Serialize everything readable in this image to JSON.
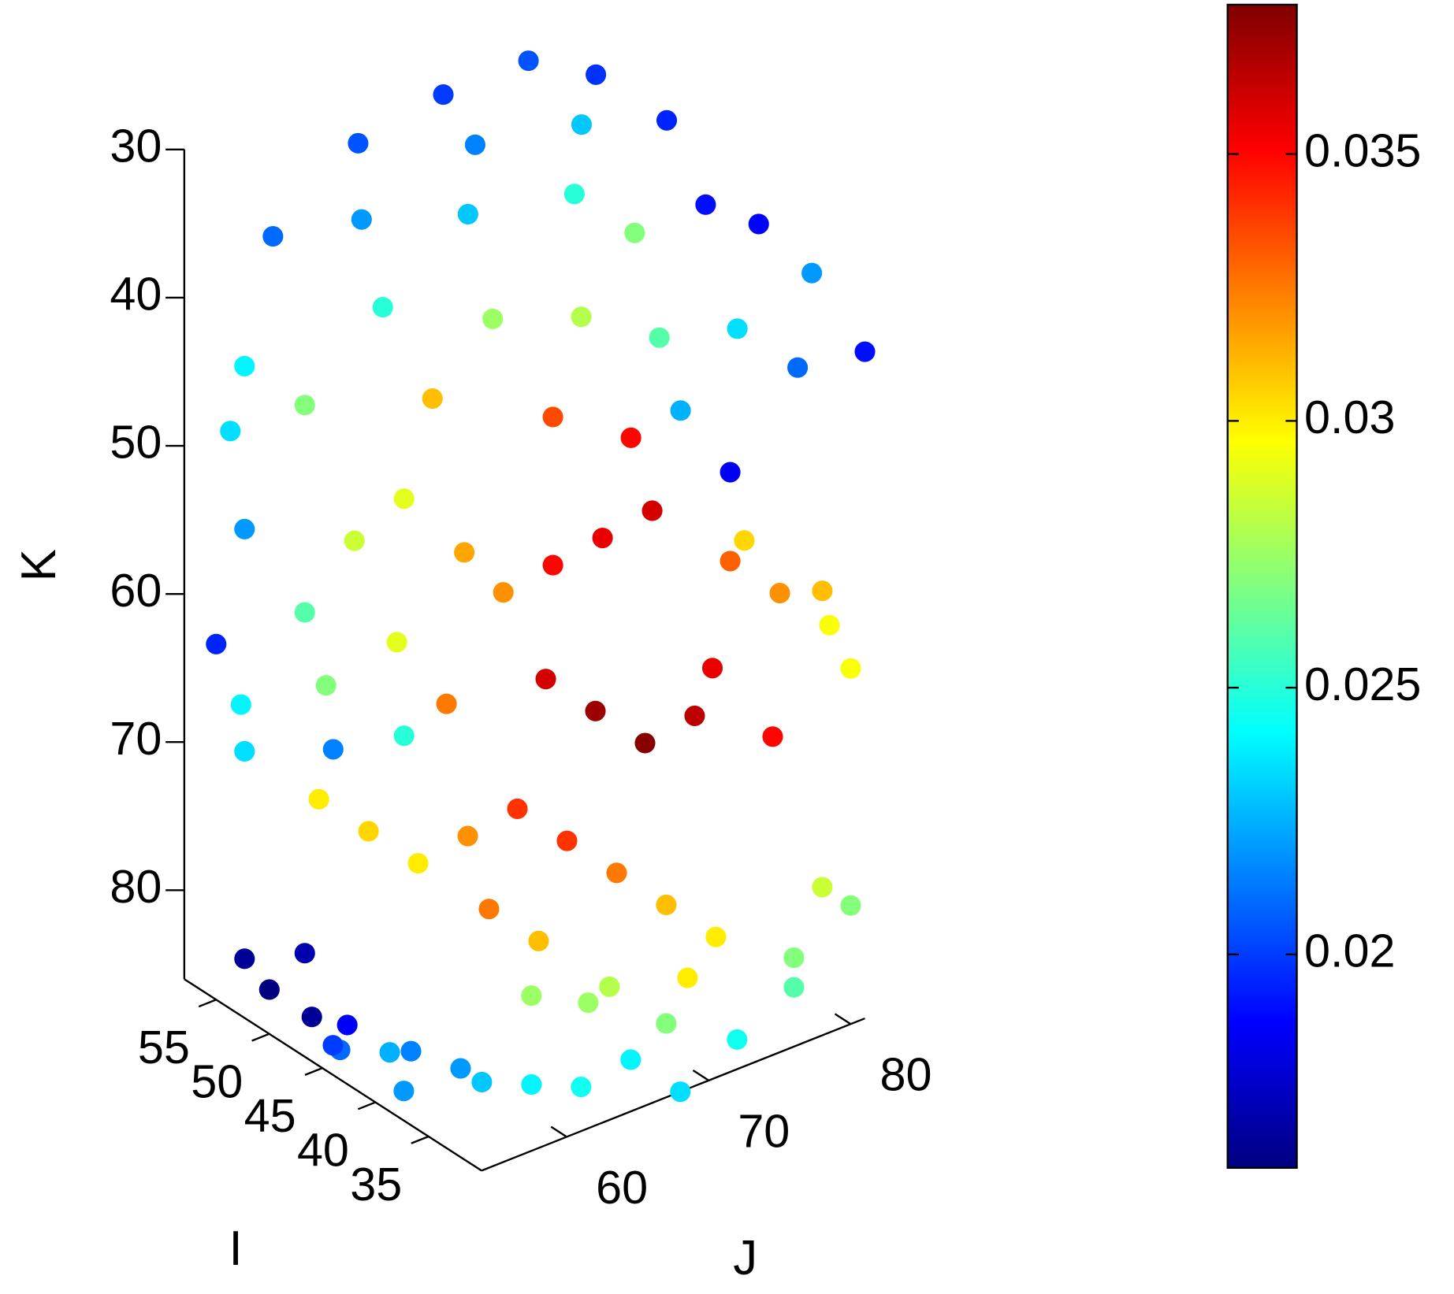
{
  "chart_data": {
    "type": "scatter3d",
    "xlabel": "I",
    "ylabel": "J",
    "zlabel": "K",
    "xlim": [
      58,
      30
    ],
    "xticks": [
      35,
      40,
      45,
      50,
      55
    ],
    "ylim": [
      54,
      81
    ],
    "yticks": [
      60,
      70,
      80
    ],
    "zlim": [
      86,
      30
    ],
    "zticks": [
      30,
      40,
      50,
      60,
      70,
      80
    ],
    "clim": [
      0.016,
      0.0378
    ],
    "cticks": [
      0.02,
      0.025,
      0.03,
      0.035
    ],
    "colormap": "jet",
    "x": [
      55,
      55,
      55,
      54,
      50,
      45,
      40,
      35,
      55,
      52,
      50,
      48,
      45,
      50,
      52,
      45,
      42,
      40,
      38,
      35,
      30,
      50,
      55,
      55,
      52,
      48,
      42,
      40,
      36,
      38,
      55,
      55,
      52,
      50,
      48,
      45,
      44,
      42,
      40,
      38,
      36,
      34,
      32,
      40,
      38,
      36,
      34,
      35,
      32,
      44,
      46,
      50,
      54,
      55,
      52,
      48,
      30,
      30,
      32,
      44,
      42,
      40,
      38,
      36,
      34,
      32,
      30,
      30,
      46,
      48,
      40,
      38,
      34,
      36,
      55,
      54,
      52,
      50,
      48,
      46,
      44,
      42,
      40,
      38,
      36,
      34,
      32,
      30,
      30,
      30,
      34,
      36,
      40,
      44,
      32,
      30
    ],
    "y": [
      64,
      70,
      76,
      80,
      82,
      81,
      81,
      81,
      58,
      62,
      68,
      74,
      76,
      76,
      70,
      66,
      70,
      74,
      78,
      80,
      81,
      62,
      56,
      55,
      58,
      64,
      68,
      72,
      76,
      74,
      56,
      54,
      58,
      60,
      62,
      64,
      66,
      68,
      70,
      72,
      76,
      78,
      80,
      66,
      68,
      70,
      72,
      74,
      76,
      62,
      60,
      58,
      55,
      56,
      60,
      62,
      80,
      78,
      74,
      60,
      62,
      64,
      66,
      68,
      70,
      72,
      76,
      78,
      58,
      56,
      62,
      64,
      66,
      62,
      56,
      57,
      58,
      57,
      58,
      56,
      58,
      58,
      60,
      60,
      62,
      64,
      66,
      68,
      72,
      76,
      70,
      66,
      56,
      54,
      70,
      80
    ],
    "z": [
      32,
      31,
      31,
      33,
      35,
      38,
      37,
      38,
      36,
      35,
      36,
      36,
      38,
      33,
      33,
      40,
      40,
      42,
      42,
      44,
      41,
      40,
      44,
      48,
      46,
      46,
      46,
      48,
      50,
      46,
      55,
      62,
      60,
      55,
      52,
      55,
      58,
      56,
      54,
      52,
      56,
      58,
      60,
      62,
      64,
      66,
      64,
      62,
      66,
      64,
      60,
      64,
      66,
      70,
      70,
      68,
      62,
      56,
      52,
      74,
      72,
      70,
      72,
      74,
      76,
      78,
      80,
      76,
      72,
      70,
      76,
      78,
      80,
      80,
      84,
      86,
      83,
      86,
      86,
      86,
      86,
      85,
      86,
      86,
      86,
      86,
      84,
      86,
      84,
      82,
      84,
      82,
      86,
      84,
      80,
      78
    ],
    "values": [
      0.0205,
      0.02,
      0.0205,
      0.0198,
      0.0195,
      0.019,
      0.0188,
      0.022,
      0.021,
      0.022,
      0.023,
      0.025,
      0.027,
      0.023,
      0.0215,
      0.0275,
      0.028,
      0.026,
      0.0235,
      0.021,
      0.019,
      0.025,
      0.024,
      0.0235,
      0.027,
      0.031,
      0.0335,
      0.035,
      0.0185,
      0.0225,
      0.022,
      0.0195,
      0.026,
      0.0285,
      0.029,
      0.0315,
      0.032,
      0.035,
      0.0355,
      0.036,
      0.033,
      0.032,
      0.0295,
      0.036,
      0.0372,
      0.0376,
      0.0365,
      0.0355,
      0.035,
      0.0325,
      0.029,
      0.027,
      0.024,
      0.0235,
      0.0215,
      0.025,
      0.0295,
      0.031,
      0.0305,
      0.03,
      0.032,
      0.034,
      0.034,
      0.0325,
      0.031,
      0.03,
      0.027,
      0.0285,
      0.0305,
      0.03,
      0.0325,
      0.031,
      0.028,
      0.0275,
      0.0165,
      0.016,
      0.017,
      0.0165,
      0.0185,
      0.021,
      0.0225,
      0.0215,
      0.022,
      0.023,
      0.024,
      0.0245,
      0.024,
      0.0235,
      0.0245,
      0.026,
      0.027,
      0.0275,
      0.022,
      0.02,
      0.03,
      0.027
    ]
  }
}
